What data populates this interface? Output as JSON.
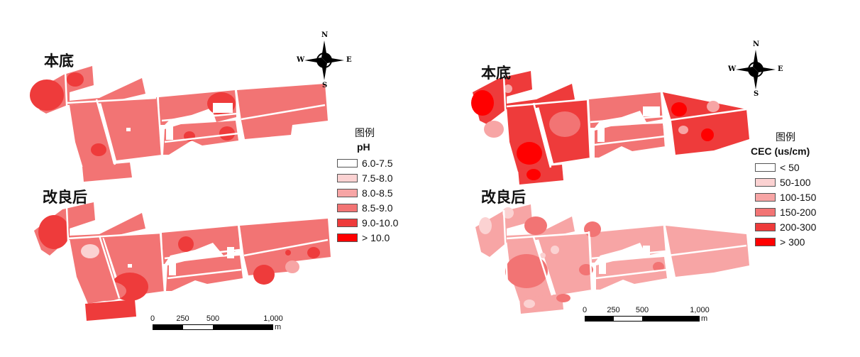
{
  "panels": [
    {
      "top_label": "本底",
      "bottom_label": "改良后",
      "legend": {
        "title": "图例",
        "subtitle": "pH",
        "items": [
          {
            "label": "6.0-7.5",
            "color": "#ffffff"
          },
          {
            "label": "7.5-8.0",
            "color": "#fbd2d2"
          },
          {
            "label": "8.0-8.5",
            "color": "#f7a5a5"
          },
          {
            "label": "8.5-9.0",
            "color": "#f27474"
          },
          {
            "label": "9.0-10.0",
            "color": "#ee3b3b"
          },
          {
            "label": "> 10.0",
            "color": "#ff0000"
          }
        ]
      },
      "compass": {
        "n": "N",
        "s": "S",
        "e": "E",
        "w": "W"
      },
      "scale": {
        "ticks": [
          "0",
          "250",
          "500",
          "1,000"
        ],
        "unit": "m"
      }
    },
    {
      "top_label": "本底",
      "bottom_label": "改良后",
      "legend": {
        "title": "图例",
        "subtitle": "CEC (us/cm)",
        "items": [
          {
            "label": "< 50",
            "color": "#ffffff"
          },
          {
            "label": "50-100",
            "color": "#fbd2d2"
          },
          {
            "label": "100-150",
            "color": "#f7a5a5"
          },
          {
            "label": "150-200",
            "color": "#f27474"
          },
          {
            "label": "200-300",
            "color": "#ee3b3b"
          },
          {
            "label": "> 300",
            "color": "#ff0000"
          }
        ]
      },
      "compass": {
        "n": "N",
        "s": "S",
        "e": "E",
        "w": "W"
      },
      "scale": {
        "ticks": [
          "0",
          "250",
          "500",
          "1,000"
        ],
        "unit": "m"
      }
    }
  ]
}
